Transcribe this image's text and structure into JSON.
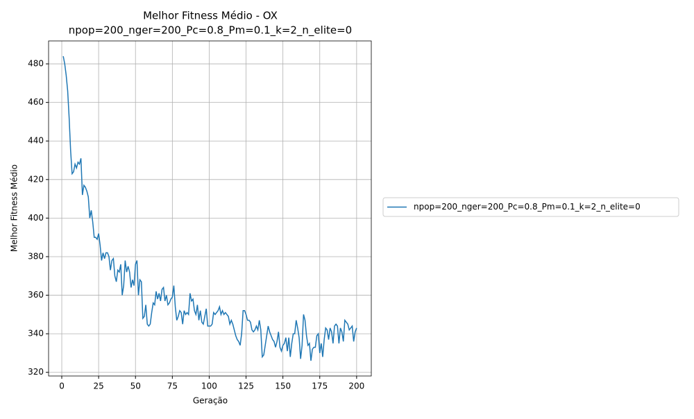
{
  "chart_data": {
    "type": "line",
    "title": "Melhor Fitness Médio - OX",
    "subtitle": "npop=200_nger=200_Pc=0.8_Pm=0.1_k=2_n_elite=0",
    "xlabel": "Geração",
    "ylabel": "Melhor Fitness Médio",
    "x": [
      1,
      2,
      3,
      4,
      5,
      6,
      7,
      8,
      9,
      10,
      11,
      12,
      13,
      14,
      15,
      16,
      17,
      18,
      19,
      20,
      21,
      22,
      23,
      24,
      25,
      26,
      27,
      28,
      29,
      30,
      31,
      32,
      33,
      34,
      35,
      36,
      37,
      38,
      39,
      40,
      41,
      42,
      43,
      44,
      45,
      46,
      47,
      48,
      49,
      50,
      51,
      52,
      53,
      54,
      55,
      56,
      57,
      58,
      59,
      60,
      61,
      62,
      63,
      64,
      65,
      66,
      67,
      68,
      69,
      70,
      71,
      72,
      73,
      74,
      75,
      76,
      77,
      78,
      79,
      80,
      81,
      82,
      83,
      84,
      85,
      86,
      87,
      88,
      89,
      90,
      91,
      92,
      93,
      94,
      95,
      96,
      97,
      98,
      99,
      100,
      101,
      102,
      103,
      104,
      105,
      106,
      107,
      108,
      109,
      110,
      111,
      112,
      113,
      114,
      115,
      116,
      117,
      118,
      119,
      120,
      121,
      122,
      123,
      124,
      125,
      126,
      127,
      128,
      129,
      130,
      131,
      132,
      133,
      134,
      135,
      136,
      137,
      138,
      139,
      140,
      141,
      142,
      143,
      144,
      145,
      146,
      147,
      148,
      149,
      150,
      151,
      152,
      153,
      154,
      155,
      156,
      157,
      158,
      159,
      160,
      161,
      162,
      163,
      164,
      165,
      166,
      167,
      168,
      169,
      170,
      171,
      172,
      173,
      174,
      175,
      176,
      177,
      178,
      179,
      180,
      181,
      182,
      183,
      184,
      185,
      186,
      187,
      188,
      189,
      190,
      191,
      192,
      193,
      194,
      195,
      196,
      197,
      198,
      199,
      200
    ],
    "series": [
      {
        "name": "npop=200_nger=200_Pc=0.8_Pm=0.1_k=2_n_elite=0",
        "color": "#1f77b4",
        "values": [
          484,
          480,
          474,
          466,
          452,
          435,
          423,
          424,
          428,
          426,
          429,
          428,
          431,
          412,
          417,
          416,
          414,
          411,
          400,
          404,
          398,
          390,
          390,
          389,
          392,
          386,
          378,
          382,
          379,
          382,
          382,
          380,
          373,
          378,
          379,
          370,
          367,
          373,
          372,
          376,
          360,
          365,
          378,
          372,
          375,
          372,
          364,
          368,
          365,
          376,
          378,
          360,
          368,
          367,
          348,
          349,
          355,
          345,
          344,
          345,
          351,
          356,
          355,
          362,
          358,
          361,
          357,
          363,
          364,
          357,
          360,
          355,
          356,
          358,
          359,
          365,
          354,
          347,
          349,
          352,
          351,
          345,
          352,
          350,
          351,
          350,
          361,
          357,
          358,
          352,
          350,
          355,
          347,
          352,
          346,
          345,
          349,
          353,
          344,
          344,
          344,
          345,
          351,
          350,
          351,
          352,
          354,
          350,
          352,
          350,
          351,
          350,
          349,
          345,
          347,
          345,
          342,
          339,
          337,
          336,
          334,
          340,
          352,
          352,
          350,
          347,
          347,
          346,
          342,
          341,
          342,
          344,
          342,
          347,
          342,
          328,
          329,
          334,
          339,
          344,
          341,
          339,
          337,
          336,
          333,
          336,
          341,
          333,
          331,
          334,
          335,
          338,
          331,
          338,
          328,
          335,
          340,
          340,
          347,
          343,
          338,
          327,
          334,
          350,
          347,
          339,
          334,
          335,
          326,
          332,
          333,
          333,
          339,
          340,
          330,
          335,
          328,
          337,
          343,
          342,
          337,
          343,
          341,
          335,
          344,
          345,
          344,
          335,
          343,
          341,
          336,
          347,
          346,
          345,
          342,
          343,
          344,
          336,
          341,
          343
        ]
      }
    ],
    "xlim": [
      -8.95,
      209.95
    ],
    "ylim": [
      318.1,
      491.9
    ],
    "xticks": [
      0,
      25,
      50,
      75,
      100,
      125,
      150,
      175,
      200
    ],
    "yticks": [
      320,
      340,
      360,
      380,
      400,
      420,
      440,
      460,
      480
    ],
    "grid": true,
    "legend": "outside right"
  }
}
